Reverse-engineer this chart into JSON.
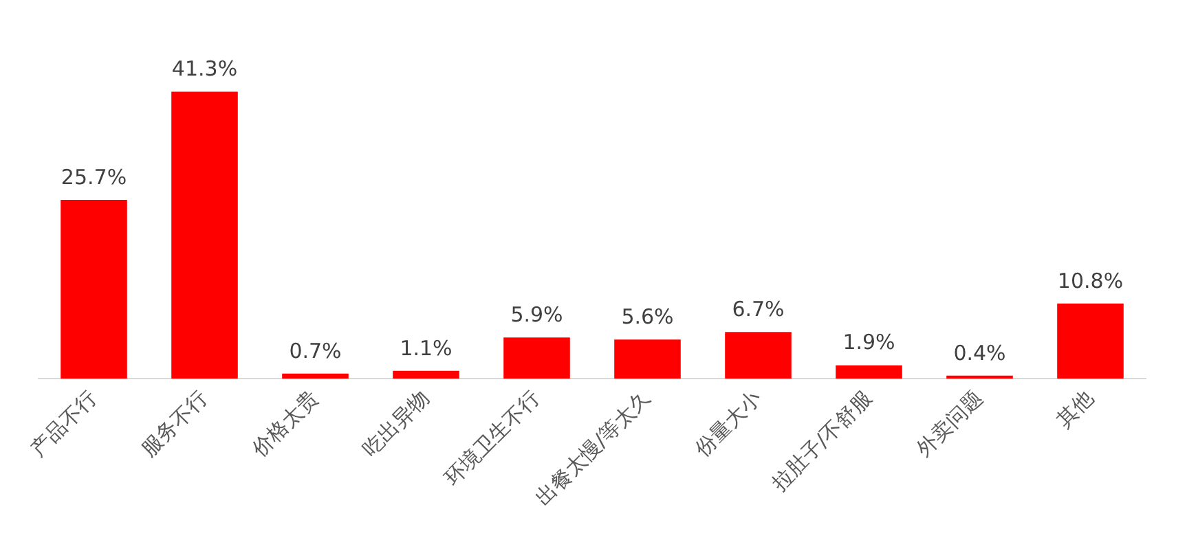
{
  "chart_data": {
    "type": "bar",
    "categories": [
      "产品不行",
      "服务不行",
      "价格太贵",
      "吃出异物",
      "环境卫生不行",
      "出餐太慢/等太久",
      "份量大小",
      "拉肚子/不舒服",
      "外卖问题",
      "其他"
    ],
    "values": [
      25.7,
      41.3,
      0.7,
      1.1,
      5.9,
      5.6,
      6.7,
      1.9,
      0.4,
      10.8
    ],
    "value_labels": [
      "25.7%",
      "41.3%",
      "0.7%",
      "1.1%",
      "5.9%",
      "5.6%",
      "6.7%",
      "1.9%",
      "0.4%",
      "10.8%"
    ],
    "color": "#ff0000",
    "grid": false,
    "legend": false
  }
}
